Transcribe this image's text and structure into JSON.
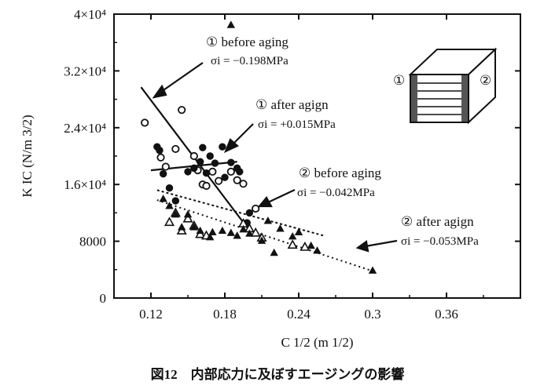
{
  "caption": "図12　内部応力に及ぼすエージングの影響",
  "chart_data": {
    "type": "scatter",
    "title": "",
    "xlabel": "C 1/2 (m 1/2)",
    "ylabel": "K IC (N/m 3/2)",
    "xlim": [
      0.09,
      0.42
    ],
    "ylim": [
      0,
      40000
    ],
    "x_ticks": [
      0.12,
      0.18,
      0.24,
      0.3,
      0.36
    ],
    "x_tick_labels": [
      "0.12",
      "0.18",
      "0.24",
      "0.3",
      "0.36"
    ],
    "y_ticks": [
      0,
      8000,
      16000,
      24000,
      32000,
      40000
    ],
    "y_tick_labels": [
      "0",
      "8000",
      "1.6×10⁴",
      "2.4×10⁴",
      "3.2×10⁴",
      "4×10⁴"
    ],
    "series": [
      {
        "name": "① before aging",
        "stress": "σi = −0.198MPa",
        "marker": "open-circle",
        "points": [
          [
            0.115,
            24700
          ],
          [
            0.128,
            19800
          ],
          [
            0.132,
            18500
          ],
          [
            0.14,
            21000
          ],
          [
            0.145,
            26500
          ],
          [
            0.155,
            20000
          ],
          [
            0.158,
            18000
          ],
          [
            0.162,
            16000
          ],
          [
            0.165,
            15800
          ],
          [
            0.17,
            17800
          ],
          [
            0.175,
            16500
          ],
          [
            0.185,
            17800
          ],
          [
            0.19,
            16600
          ],
          [
            0.195,
            16100
          ],
          [
            0.205,
            12600
          ]
        ],
        "fit_line": [
          [
            0.112,
            29700
          ],
          [
            0.2,
            9500
          ]
        ]
      },
      {
        "name": "① after agign",
        "stress": "σi = +0.015MPa",
        "marker": "filled-circle",
        "points": [
          [
            0.125,
            21300
          ],
          [
            0.127,
            20800
          ],
          [
            0.13,
            17500
          ],
          [
            0.135,
            15500
          ],
          [
            0.14,
            13700
          ],
          [
            0.15,
            17800
          ],
          [
            0.155,
            18300
          ],
          [
            0.16,
            19200
          ],
          [
            0.162,
            21200
          ],
          [
            0.165,
            17600
          ],
          [
            0.168,
            20000
          ],
          [
            0.172,
            19000
          ],
          [
            0.178,
            21300
          ],
          [
            0.18,
            17000
          ],
          [
            0.185,
            19100
          ],
          [
            0.19,
            18300
          ],
          [
            0.192,
            17800
          ],
          [
            0.198,
            10600
          ],
          [
            0.2,
            12000
          ]
        ],
        "fit_line": [
          [
            0.12,
            18000
          ],
          [
            0.19,
            19200
          ]
        ]
      },
      {
        "name": "② before aging",
        "stress": "σi = −0.042MPa",
        "marker": "open-triangle",
        "points": [
          [
            0.135,
            10700
          ],
          [
            0.14,
            12000
          ],
          [
            0.145,
            9500
          ],
          [
            0.15,
            11200
          ],
          [
            0.155,
            10200
          ],
          [
            0.16,
            9000
          ],
          [
            0.165,
            8800
          ],
          [
            0.195,
            10500
          ],
          [
            0.2,
            9800
          ],
          [
            0.205,
            9200
          ],
          [
            0.21,
            8500
          ],
          [
            0.235,
            7500
          ],
          [
            0.245,
            7200
          ]
        ],
        "fit_line": [
          [
            0.125,
            15200
          ],
          [
            0.26,
            8800
          ]
        ]
      },
      {
        "name": "② after agign",
        "stress": "σi = −0.053MPa",
        "marker": "filled-triangle",
        "points": [
          [
            0.13,
            14000
          ],
          [
            0.135,
            13000
          ],
          [
            0.14,
            11800
          ],
          [
            0.145,
            10000
          ],
          [
            0.15,
            11800
          ],
          [
            0.155,
            10000
          ],
          [
            0.16,
            9500
          ],
          [
            0.168,
            8600
          ],
          [
            0.17,
            9300
          ],
          [
            0.178,
            9500
          ],
          [
            0.185,
            9200
          ],
          [
            0.19,
            8800
          ],
          [
            0.195,
            9700
          ],
          [
            0.2,
            9100
          ],
          [
            0.21,
            8100
          ],
          [
            0.215,
            10900
          ],
          [
            0.22,
            6400
          ],
          [
            0.225,
            9800
          ],
          [
            0.235,
            8700
          ],
          [
            0.24,
            9300
          ],
          [
            0.25,
            7400
          ],
          [
            0.255,
            6700
          ],
          [
            0.3,
            3900
          ],
          [
            0.185,
            38500
          ]
        ],
        "fit_line": [
          [
            0.125,
            13800
          ],
          [
            0.3,
            3800
          ]
        ]
      }
    ]
  },
  "inset": {
    "label_left": "①",
    "label_right": "②"
  }
}
